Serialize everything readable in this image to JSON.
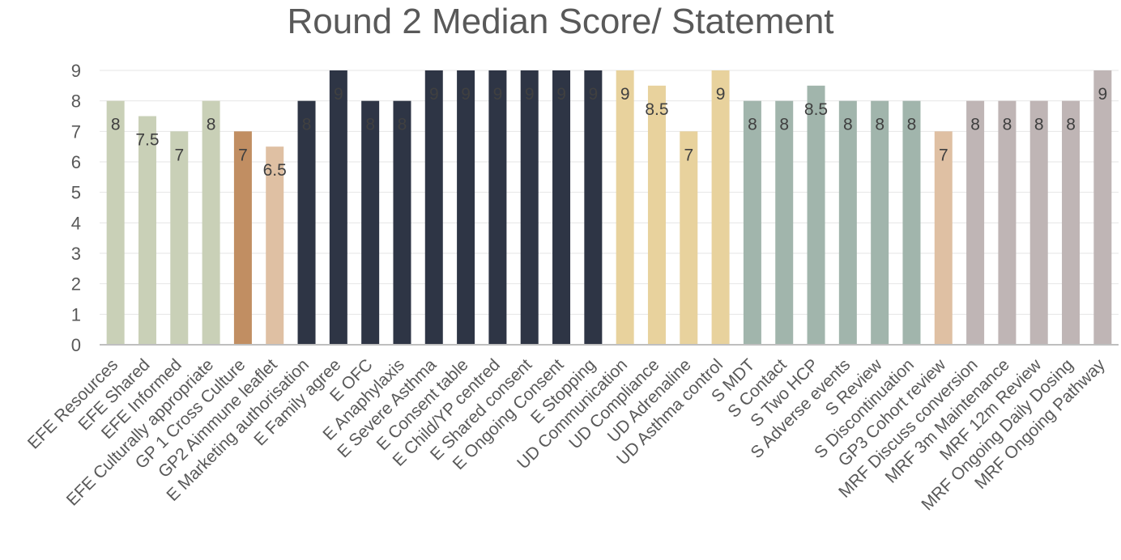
{
  "chart_data": {
    "type": "bar",
    "title": "Round 2 Median Score/ Statement",
    "xlabel": "",
    "ylabel": "",
    "ylim": [
      0,
      9
    ],
    "yticks": [
      0,
      1,
      2,
      3,
      4,
      5,
      6,
      7,
      8,
      9
    ],
    "grid": true,
    "legend": "none",
    "categories": [
      "EFE Resources",
      "EFE Shared",
      "EFE Informed",
      "EFE Culturally appropriate",
      "GP 1 Cross Culture",
      "GP2 Aimmune leaflet",
      "E Marketing authorisation",
      "E Family agree",
      "E OFC",
      "E Anaphylaxis",
      "E Severe Asthma",
      "E Consent table",
      "E Child/YP centred",
      "E Shared consent",
      "E Ongoing Consent",
      "E Stopping",
      "UD Communication",
      "UD Compliance",
      "UD Adrenaline",
      "UD Asthma control",
      "S MDT",
      "S Contact",
      "S Two HCP",
      "S Adverse events",
      "S Review",
      "S Discontinuation",
      "GP3 Cohort review",
      "MRF Discuss conversion",
      "MRF 3m Maintenance",
      "MRF 12m Review",
      "MRF Ongoing Daily Dosing",
      "MRF Ongoing Pathway"
    ],
    "values": [
      8,
      7.5,
      7,
      8,
      7,
      6.5,
      8,
      9,
      8,
      8,
      9,
      9,
      9,
      9,
      9,
      9,
      9,
      8.5,
      7,
      9,
      8,
      8,
      8.5,
      8,
      8,
      8,
      7,
      8,
      8,
      8,
      8,
      9
    ],
    "data_labels": [
      "8",
      "7.5",
      "7",
      "8",
      "7",
      "6.5",
      "8",
      "9",
      "8",
      "8",
      "9",
      "9",
      "9",
      "9",
      "9",
      "9",
      "9",
      "8.5",
      "7",
      "9",
      "8",
      "8",
      "8.5",
      "8",
      "8",
      "8",
      "7",
      "8",
      "8",
      "8",
      "8",
      "9"
    ],
    "bar_colors": [
      "#c9d0b7",
      "#c9d0b7",
      "#c9d0b7",
      "#c9d0b7",
      "#c18e62",
      "#dfc0a3",
      "#2e3545",
      "#2e3545",
      "#2e3545",
      "#2e3545",
      "#2e3545",
      "#2e3545",
      "#2e3545",
      "#2e3545",
      "#2e3545",
      "#2e3545",
      "#e8d29d",
      "#e8d29d",
      "#e8d29d",
      "#e8d29d",
      "#a1b5ac",
      "#a1b5ac",
      "#a1b5ac",
      "#a1b5ac",
      "#a1b5ac",
      "#a1b5ac",
      "#dfc0a3",
      "#bfb5b5",
      "#bfb5b5",
      "#bfb5b5",
      "#bfb5b5",
      "#bfb5b5"
    ],
    "colors": {
      "grid": "#e6e6e6",
      "axis": "#bfbfbf",
      "text": "#595959"
    }
  }
}
